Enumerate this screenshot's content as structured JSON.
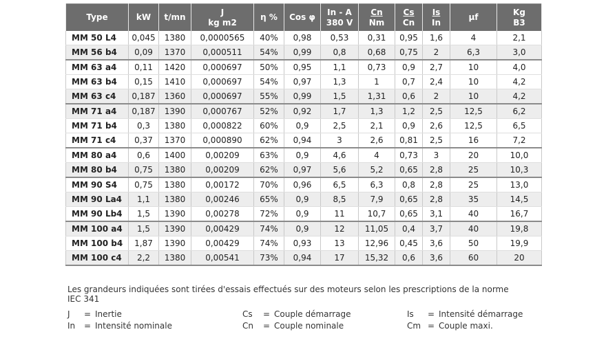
{
  "headers": [
    {
      "line1": "Type",
      "line2": "",
      "underline": false
    },
    {
      "line1": "kW",
      "line2": "",
      "underline": false
    },
    {
      "line1": "t/mn",
      "line2": "",
      "underline": false
    },
    {
      "line1": "J",
      "line2": "kg m2",
      "underline": false
    },
    {
      "line1": "η %",
      "line2": "",
      "underline": false
    },
    {
      "line1": "Cos φ",
      "line2": "",
      "underline": false
    },
    {
      "line1": "In - A",
      "line2": "380 V",
      "underline": false
    },
    {
      "line1": "Cn",
      "line2": "Nm",
      "underline": true
    },
    {
      "line1": "Cs",
      "line2": "Cn",
      "underline": true
    },
    {
      "line1": "Is",
      "line2": "In",
      "underline": true
    },
    {
      "line1": "µf",
      "line2": "",
      "underline": false
    },
    {
      "line1": "Kg",
      "line2": "B3",
      "underline": false
    }
  ],
  "rows": [
    [
      "MM 50 L4",
      "0,045",
      "1380",
      "0,0000565",
      "40%",
      "0,98",
      "0,53",
      "0,31",
      "0,95",
      "1,6",
      "4",
      "2,1"
    ],
    [
      "MM 56 b4",
      "0,09",
      "1370",
      "0,000511",
      "54%",
      "0,99",
      "0,8",
      "0,68",
      "0,75",
      "2",
      "6,3",
      "3,0"
    ],
    [
      "MM 63 a4",
      "0,11",
      "1420",
      "0,000697",
      "50%",
      "0,95",
      "1,1",
      "0,73",
      "0,9",
      "2,7",
      "10",
      "4,0"
    ],
    [
      "MM 63 b4",
      "0,15",
      "1410",
      "0,000697",
      "54%",
      "0,97",
      "1,3",
      "1",
      "0,7",
      "2,4",
      "10",
      "4,2"
    ],
    [
      "MM 63 c4",
      "0,187",
      "1360",
      "0,000697",
      "55%",
      "0,99",
      "1,5",
      "1,31",
      "0,6",
      "2",
      "10",
      "4,2"
    ],
    [
      "MM 71 a4",
      "0,187",
      "1390",
      "0,000767",
      "52%",
      "0,92",
      "1,7",
      "1,3",
      "1,2",
      "2,5",
      "12,5",
      "6,2"
    ],
    [
      "MM 71 b4",
      "0,3",
      "1380",
      "0,000822",
      "60%",
      "0,9",
      "2,5",
      "2,1",
      "0,9",
      "2,6",
      "12,5",
      "6,5"
    ],
    [
      "MM 71 c4",
      "0,37",
      "1370",
      "0,000890",
      "62%",
      "0,94",
      "3",
      "2,6",
      "0,81",
      "2,5",
      "16",
      "7,2"
    ],
    [
      "MM 80 a4",
      "0,6",
      "1400",
      "0,00209",
      "63%",
      "0,9",
      "4,6",
      "4",
      "0,73",
      "3",
      "20",
      "10,0"
    ],
    [
      "MM 80 b4",
      "0,75",
      "1380",
      "0,00209",
      "62%",
      "0,97",
      "5,6",
      "5,2",
      "0,65",
      "2,8",
      "25",
      "10,3"
    ],
    [
      "MM 90 S4",
      "0,75",
      "1380",
      "0,00172",
      "70%",
      "0,96",
      "6,5",
      "6,3",
      "0,8",
      "2,8",
      "25",
      "13,0"
    ],
    [
      "MM 90 La4",
      "1,1",
      "1380",
      "0,00246",
      "65%",
      "0,9",
      "8,5",
      "7,9",
      "0,65",
      "2,8",
      "35",
      "14,5"
    ],
    [
      "MM 90 Lb4",
      "1,5",
      "1390",
      "0,00278",
      "72%",
      "0,9",
      "11",
      "10,7",
      "0,65",
      "3,1",
      "40",
      "16,7"
    ],
    [
      "MM 100 a4",
      "1,5",
      "1390",
      "0,00429",
      "74%",
      "0,9",
      "12",
      "11,05",
      "0,4",
      "3,7",
      "40",
      "19,8"
    ],
    [
      "MM 100 b4",
      "1,87",
      "1390",
      "0,00429",
      "74%",
      "0,93",
      "13",
      "12,96",
      "0,45",
      "3,6",
      "50",
      "19,9"
    ],
    [
      "MM 100 c4",
      "2,2",
      "1380",
      "0,00541",
      "73%",
      "0,94",
      "17",
      "15,32",
      "0,6",
      "3,6",
      "60",
      "20"
    ]
  ],
  "row_styles": [
    {
      "alt": false,
      "group_start": false
    },
    {
      "alt": true,
      "group_start": false
    },
    {
      "alt": false,
      "group_start": true
    },
    {
      "alt": false,
      "group_start": false
    },
    {
      "alt": true,
      "group_start": false
    },
    {
      "alt": true,
      "group_start": true
    },
    {
      "alt": false,
      "group_start": false
    },
    {
      "alt": false,
      "group_start": false
    },
    {
      "alt": false,
      "group_start": true
    },
    {
      "alt": true,
      "group_start": false
    },
    {
      "alt": false,
      "group_start": true
    },
    {
      "alt": true,
      "group_start": false
    },
    {
      "alt": false,
      "group_start": false
    },
    {
      "alt": true,
      "group_start": true
    },
    {
      "alt": false,
      "group_start": false
    },
    {
      "alt": true,
      "group_start": false
    }
  ],
  "note": "Les grandeurs indiquées sont tirées d'essais effectués sur des moteurs selon les prescriptions de la norme IEC 341",
  "legend": [
    [
      {
        "abbr": "J",
        "eq": "=",
        "text": "Inertie"
      },
      {
        "abbr": "Cs",
        "eq": "=",
        "text": "Couple démarrage"
      },
      {
        "abbr": "Is",
        "eq": "=",
        "text": "Intensité démarrage"
      }
    ],
    [
      {
        "abbr": "In",
        "eq": "=",
        "text": "Intensité nominale"
      },
      {
        "abbr": "Cn",
        "eq": "=",
        "text": "Couple nominale"
      },
      {
        "abbr": "Cm",
        "eq": "=",
        "text": "Couple maxi."
      }
    ]
  ],
  "colors": {
    "header_bg": "#6d6d6d",
    "alt_row": "#ededed",
    "group_border": "#8a8a8a"
  }
}
